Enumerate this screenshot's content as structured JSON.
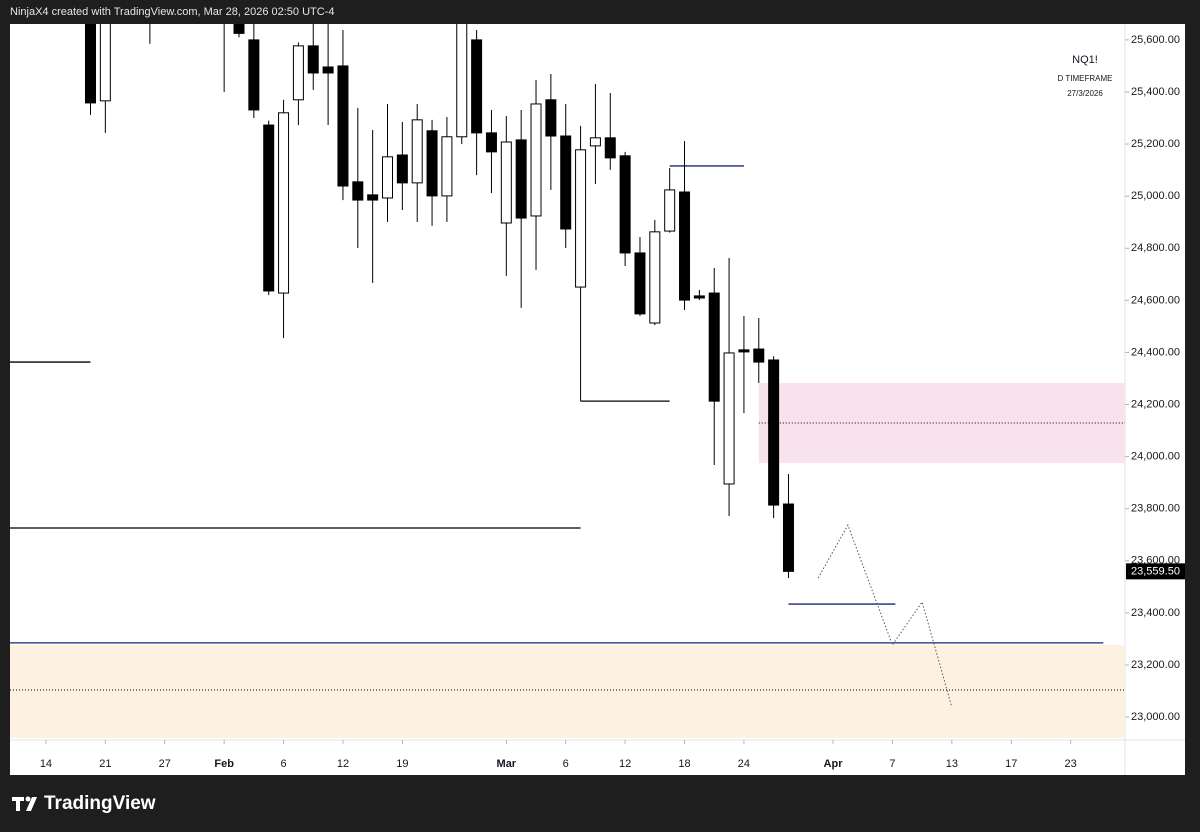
{
  "chart_data": {
    "type": "candlestick",
    "header": "NinjaX4 created with TradingView.com, Mar 28, 2026 02:50 UTC-4",
    "symbol": "NQ1!",
    "timeframe": "D TIMEFRAME",
    "date": "27/3/2026",
    "brand": "TradingView",
    "last_price": 23559.5,
    "last_price_label": "23,559.50",
    "up_color": "#ffffff",
    "down_color": "#000000",
    "x": [
      3,
      4,
      7,
      12,
      13,
      14,
      15,
      16,
      17,
      18,
      19,
      20,
      21,
      22,
      23,
      24,
      25,
      26,
      27,
      28,
      29,
      30,
      31,
      32,
      33,
      34,
      35,
      36,
      37,
      38,
      39,
      40,
      41,
      42,
      43,
      44,
      45,
      46,
      47,
      48,
      49,
      50
    ],
    "open": [
      25720,
      25366,
      25700,
      25750,
      25680,
      25600,
      25273,
      24628,
      25370,
      25577,
      25496,
      25500,
      25055,
      25005,
      24993,
      25158,
      25051,
      25251,
      25001,
      25228,
      25600,
      25243,
      24897,
      25216,
      24924,
      25370,
      25231,
      24651,
      25193,
      25224,
      25155,
      24782,
      24513,
      24866,
      25016,
      24617,
      24628,
      23895,
      24410,
      24413,
      24371,
      23818
    ],
    "high": [
      25800,
      25800,
      25760,
      25800,
      25720,
      25680,
      25290,
      25370,
      25590,
      25680,
      25680,
      25638,
      25339,
      25254,
      25354,
      25285,
      25354,
      25293,
      25304,
      25750,
      25638,
      25331,
      25308,
      25331,
      25446,
      25469,
      25354,
      25270,
      25431,
      25396,
      25170,
      24843,
      24909,
      25108,
      25212,
      24640,
      24724,
      24763,
      24540,
      24532,
      24386,
      23933
    ],
    "low": [
      25312,
      25243,
      25585,
      25400,
      25610,
      25300,
      24620,
      24455,
      25273,
      25408,
      25273,
      24985,
      24801,
      24667,
      24901,
      24947,
      24901,
      24886,
      24901,
      25200,
      25081,
      25012,
      24694,
      24571,
      24717,
      25024,
      24801,
      24213,
      25047,
      25101,
      24732,
      24540,
      24505,
      24860,
      24563,
      24601,
      23968,
      23772,
      24167,
      24283,
      23764,
      23534
    ],
    "close": [
      25358,
      25700,
      25680,
      25700,
      25625,
      25331,
      24636,
      25320,
      25577,
      25473,
      25473,
      25039,
      24985,
      24985,
      25151,
      25051,
      25293,
      25001,
      25228,
      25700,
      25243,
      25170,
      25208,
      24916,
      25354,
      25231,
      24874,
      25178,
      25224,
      25147,
      24782,
      24548,
      24863,
      25024,
      24601,
      24609,
      24213,
      24398,
      24402,
      24363,
      23814,
      23559.5
    ],
    "xlim": [
      -2.42,
      72.66
    ],
    "xticks": [
      {
        "value": 0,
        "label": "14"
      },
      {
        "value": 4,
        "label": "21"
      },
      {
        "value": 8,
        "label": "27"
      },
      {
        "value": 12,
        "label": "Feb"
      },
      {
        "value": 16,
        "label": "6"
      },
      {
        "value": 20,
        "label": "12"
      },
      {
        "value": 24,
        "label": "19"
      },
      {
        "value": 31,
        "label": "Mar"
      },
      {
        "value": 35,
        "label": "6"
      },
      {
        "value": 39,
        "label": "12"
      },
      {
        "value": 43,
        "label": "18"
      },
      {
        "value": 47,
        "label": "24"
      },
      {
        "value": 53,
        "label": "Apr"
      },
      {
        "value": 57,
        "label": "7"
      },
      {
        "value": 61,
        "label": "13"
      },
      {
        "value": 65,
        "label": "17"
      },
      {
        "value": 69,
        "label": "23"
      }
    ],
    "ylim": [
      22912,
      25661
    ],
    "yticks": [
      {
        "value": 25600,
        "label": "25,600.00"
      },
      {
        "value": 25400,
        "label": "25,400.00"
      },
      {
        "value": 25200,
        "label": "25,200.00"
      },
      {
        "value": 25000,
        "label": "25,000.00"
      },
      {
        "value": 24800,
        "label": "24,800.00"
      },
      {
        "value": 24600,
        "label": "24,600.00"
      },
      {
        "value": 24400,
        "label": "24,400.00"
      },
      {
        "value": 24200,
        "label": "24,200.00"
      },
      {
        "value": 24000,
        "label": "24,000.00"
      },
      {
        "value": 23800,
        "label": "23,800.00"
      },
      {
        "value": 23600,
        "label": "23,600.00"
      },
      {
        "value": 23400,
        "label": "23,400.00"
      },
      {
        "value": 23200,
        "label": "23,200.00"
      },
      {
        "value": 23000,
        "label": "23,000.00"
      }
    ],
    "zones": [
      {
        "y": [
          23975,
          24283
        ],
        "x": [
          48,
          72.66
        ],
        "mid": 24129,
        "color": "#f8e3ec"
      },
      {
        "y": [
          22920,
          23277
        ],
        "x": [
          -2.42,
          72.66
        ],
        "mid": 23104,
        "color": "#fdf2e1"
      }
    ],
    "lines": [
      {
        "y": 24363,
        "x": [
          -2.42,
          3
        ],
        "color": "#000000"
      },
      {
        "y": 23726,
        "x": [
          -2.42,
          36
        ],
        "color": "#000000"
      },
      {
        "y": 24213,
        "x": [
          36,
          42
        ],
        "color": "#000000"
      },
      {
        "y": 25116,
        "x": [
          42,
          47
        ],
        "color": "#1a237e"
      },
      {
        "y": 23434,
        "x": [
          50,
          57.2
        ],
        "color": "#1a237e"
      },
      {
        "y": 23285,
        "x": [
          -2.42,
          71.2
        ],
        "color": "#1a237e"
      }
    ],
    "projection": {
      "x": [
        52,
        54,
        57,
        59,
        61
      ],
      "y": [
        23534,
        23737,
        23277,
        23442,
        23038
      ]
    }
  }
}
